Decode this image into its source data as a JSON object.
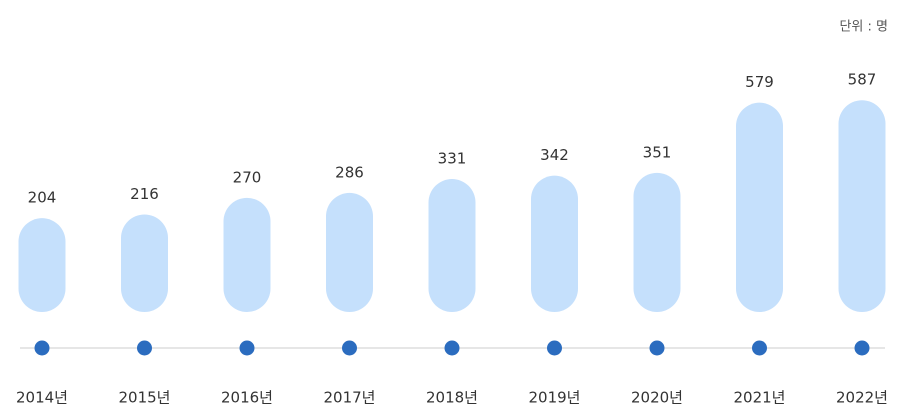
{
  "chart_data": {
    "type": "bar",
    "unit": "단위 : 명",
    "categories": [
      "2014년",
      "2015년",
      "2016년",
      "2017년",
      "2018년",
      "2019년",
      "2020년",
      "2021년",
      "2022년"
    ],
    "values": [
      204,
      216,
      270,
      286,
      331,
      342,
      351,
      579,
      587
    ],
    "color": "#c5e0fc",
    "dot_color": "#2b6cbf"
  }
}
